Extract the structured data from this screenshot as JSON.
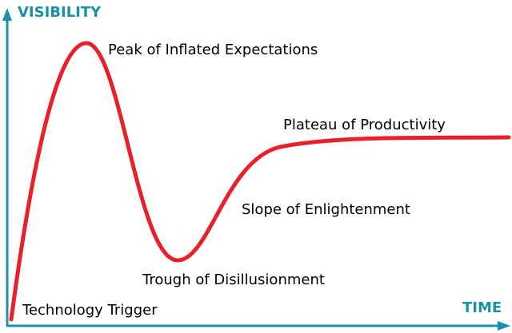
{
  "axes": {
    "y_label": "VISIBILITY",
    "x_label": "TIME",
    "color": "#1a8fa8"
  },
  "curve": {
    "color": "#e8202a"
  },
  "phases": [
    {
      "label": "Technology Trigger"
    },
    {
      "label": "Peak of Inflated Expectations"
    },
    {
      "label": "Trough of Disillusionment"
    },
    {
      "label": "Slope of Enlightenment"
    },
    {
      "label": "Plateau of Productivity"
    }
  ]
}
